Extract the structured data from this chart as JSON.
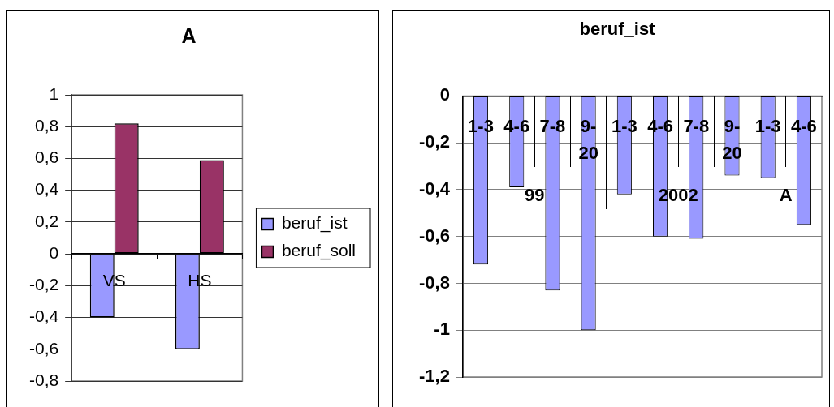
{
  "chart_data": [
    {
      "type": "bar",
      "title": "A",
      "categories": [
        "VS",
        "HS"
      ],
      "series": [
        {
          "name": "beruf_ist",
          "color": "#9999ff",
          "values": [
            -0.4,
            -0.6
          ]
        },
        {
          "name": "beruf_soll",
          "color": "#993366",
          "values": [
            0.82,
            0.59
          ]
        }
      ],
      "ylim": [
        -0.8,
        1
      ],
      "yticks": [
        {
          "value": -0.8,
          "label": "-0,8"
        },
        {
          "value": -0.6,
          "label": "-0,6"
        },
        {
          "value": -0.4,
          "label": "-0,4"
        },
        {
          "value": -0.2,
          "label": "-0,2"
        },
        0,
        {
          "value": 0.2,
          "label": "0,2"
        },
        {
          "value": 0.4,
          "label": "0,4"
        },
        {
          "value": 0.6,
          "label": "0,6"
        },
        {
          "value": 0.8,
          "label": "0,8"
        },
        1
      ],
      "grid": "y",
      "legend": "right"
    },
    {
      "type": "bar",
      "title": "beruf_ist",
      "categories": [
        "1-3",
        "4-6",
        "7-8",
        "9-20",
        "1-3",
        "4-6",
        "7-8",
        "9-20",
        "1-3",
        "4-6"
      ],
      "series": [
        {
          "color": "#9999ff",
          "values": [
            -0.72,
            -0.39,
            -0.83,
            -1.0,
            -0.42,
            -0.6,
            -0.61,
            -0.34,
            -0.35,
            -0.55
          ]
        }
      ],
      "ylim": [
        -1.2,
        0
      ],
      "yticks": [
        {
          "value": -1.2,
          "label": "-1,2"
        },
        -1,
        {
          "value": -0.8,
          "label": "-0,8"
        },
        {
          "value": -0.6,
          "label": "-0,6"
        },
        {
          "value": -0.4,
          "label": "-0,4"
        },
        {
          "value": -0.2,
          "label": "-0,2"
        },
        0
      ],
      "grid": "y",
      "annotations": [
        "99",
        "2002",
        "A"
      ]
    }
  ]
}
